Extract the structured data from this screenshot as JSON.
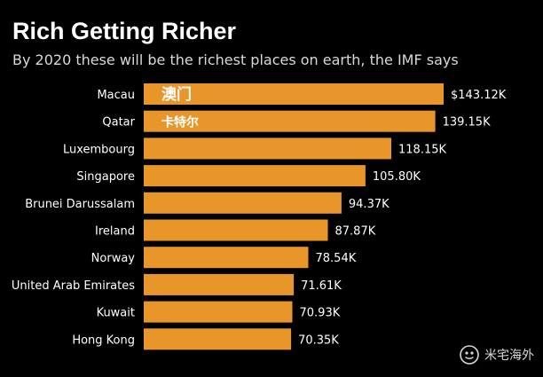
{
  "chart_data": {
    "type": "bar",
    "orientation": "horizontal",
    "title": "Rich Getting Richer",
    "subtitle": "By 2020 these will be the richest places on earth, the IMF says",
    "categories": [
      "Macau",
      "Qatar",
      "Luxembourg",
      "Singapore",
      "Brunei Darussalam",
      "Ireland",
      "Norway",
      "United Arab Emirates",
      "Kuwait",
      "Hong Kong"
    ],
    "values": [
      143.12,
      139.15,
      118.15,
      105.8,
      94.37,
      87.87,
      78.54,
      71.61,
      70.93,
      70.35
    ],
    "value_labels": [
      "$143.12K",
      "139.15K",
      "118.15K",
      "105.80K",
      "94.37K",
      "87.87K",
      "78.54K",
      "71.61K",
      "70.93K",
      "70.35K"
    ],
    "annotations": [
      "澳门",
      "卡特尔",
      "",
      "",
      "",
      "",
      "",
      "",
      "",
      ""
    ],
    "bar_color": "#e8962a",
    "background": "#000000",
    "xlim": [
      0,
      143.12
    ],
    "grid": false,
    "legend": false
  },
  "watermark": {
    "text": "米宅海外",
    "icon": "wechat-icon"
  }
}
